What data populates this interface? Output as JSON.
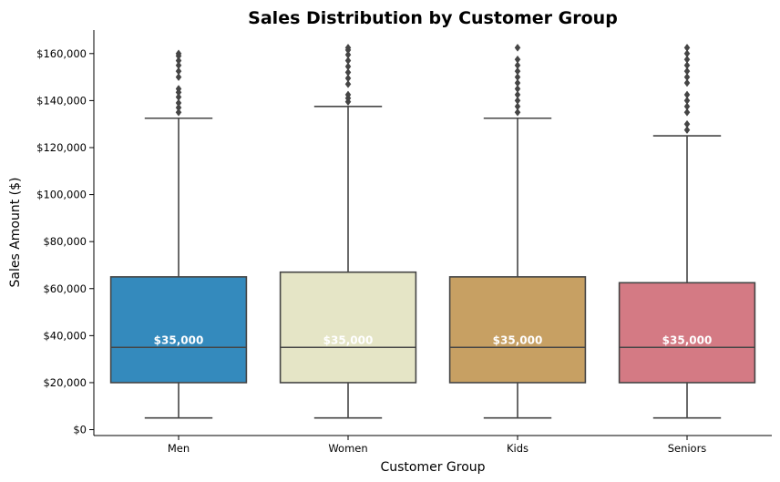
{
  "chart_data": {
    "type": "box",
    "title": "Sales Distribution by Customer Group",
    "xlabel": "Customer Group",
    "ylabel": "Sales Amount ($)",
    "ylim": [
      -2500,
      170000
    ],
    "yticks": [
      0,
      20000,
      40000,
      60000,
      80000,
      100000,
      120000,
      140000,
      160000
    ],
    "ytick_labels": [
      "$0",
      "$20,000",
      "$40,000",
      "$60,000",
      "$80,000",
      "$100,000",
      "$120,000",
      "$140,000",
      "$160,000"
    ],
    "grid": false,
    "categories": [
      "Men",
      "Women",
      "Kids",
      "Seniors"
    ],
    "boxes": [
      {
        "category": "Men",
        "color": "#348abd",
        "whisker_low": 5000,
        "q1": 20000,
        "median": 35000,
        "q3": 65000,
        "whisker_high": 132500,
        "median_label": "$35,000",
        "outliers": [
          135000,
          137000,
          139000,
          141500,
          143500,
          145000,
          150000,
          152500,
          155000,
          157000,
          159000,
          160000
        ]
      },
      {
        "category": "Women",
        "color": "#e5e5c6",
        "whisker_low": 5000,
        "q1": 20000,
        "median": 35000,
        "q3": 67000,
        "whisker_high": 137500,
        "median_label": "$35,000",
        "outliers": [
          139500,
          141000,
          142500,
          147000,
          149500,
          152000,
          154500,
          157000,
          159500,
          161500,
          162500
        ]
      },
      {
        "category": "Kids",
        "color": "#c7a063",
        "whisker_low": 5000,
        "q1": 20000,
        "median": 35000,
        "q3": 65000,
        "whisker_high": 132500,
        "median_label": "$35,000",
        "outliers": [
          135000,
          137500,
          140000,
          142500,
          145000,
          147500,
          150000,
          152500,
          155000,
          157500,
          162500
        ]
      },
      {
        "category": "Seniors",
        "color": "#d47a84",
        "whisker_low": 5000,
        "q1": 20000,
        "median": 35000,
        "q3": 62500,
        "whisker_high": 125000,
        "median_label": "$35,000",
        "outliers": [
          127500,
          130000,
          135000,
          137500,
          140000,
          142500,
          147500,
          150000,
          152500,
          155000,
          157500,
          160000,
          162500
        ]
      }
    ]
  }
}
